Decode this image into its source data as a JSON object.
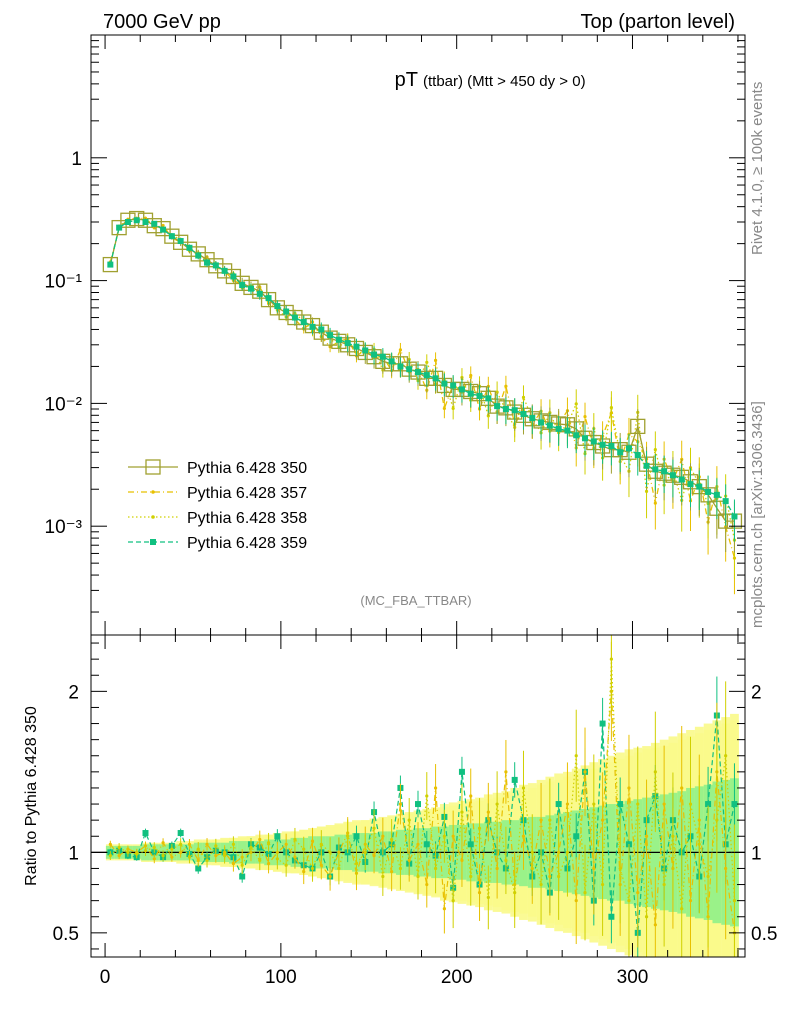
{
  "header": {
    "left": "7000 GeV pp",
    "right": "Top (parton level)"
  },
  "side_labels": {
    "rivet": "Rivet 4.1.0, ≥ 100k events",
    "mcplots": "mcplots.cern.ch [arXiv:1306.3436]"
  },
  "chart_data": [
    {
      "type": "line",
      "title": "pT",
      "subtitle": "(ttbar) (Mtt > 450 dy > 0)",
      "analysis_tag": "(MC_FBA_TTBAR)",
      "xlabel": "",
      "ylabel": "",
      "xlim": [
        -8,
        364
      ],
      "ylim": [
        0.00013,
        10
      ],
      "yscale": "log",
      "ytick_labels": [
        "1",
        "10⁻¹",
        "10⁻²",
        "10⁻³"
      ],
      "legend_position": "bottom-left",
      "series": [
        {
          "name": "Pythia 6.428 350",
          "color": "#a0a030",
          "marker": "open-square",
          "x": [
            3,
            8,
            13,
            18,
            23,
            28,
            33,
            38,
            43,
            48,
            53,
            58,
            63,
            68,
            73,
            78,
            83,
            88,
            93,
            98,
            103,
            108,
            113,
            118,
            123,
            128,
            133,
            138,
            143,
            148,
            153,
            158,
            163,
            168,
            173,
            178,
            183,
            188,
            193,
            198,
            203,
            208,
            213,
            218,
            223,
            228,
            233,
            238,
            243,
            248,
            253,
            258,
            263,
            268,
            273,
            278,
            283,
            288,
            293,
            298,
            303,
            308,
            313,
            318,
            323,
            328,
            333,
            338,
            343,
            348,
            353,
            358
          ],
          "y": [
            0.135,
            0.27,
            0.31,
            0.32,
            0.31,
            0.28,
            0.265,
            0.23,
            0.205,
            0.18,
            0.165,
            0.148,
            0.132,
            0.12,
            0.108,
            0.095,
            0.088,
            0.082,
            0.07,
            0.06,
            0.055,
            0.05,
            0.046,
            0.043,
            0.038,
            0.034,
            0.032,
            0.03,
            0.028,
            0.026,
            0.024,
            0.022,
            0.021,
            0.021,
            0.019,
            0.018,
            0.016,
            0.016,
            0.014,
            0.013,
            0.013,
            0.0125,
            0.012,
            0.011,
            0.0095,
            0.0092,
            0.0085,
            0.008,
            0.0075,
            0.0072,
            0.007,
            0.0068,
            0.0067,
            0.0062,
            0.0052,
            0.0048,
            0.0045,
            0.0042,
            0.0042,
            0.004,
            0.0065,
            0.0032,
            0.0028,
            0.0027,
            0.0026,
            0.0025,
            0.0023,
            0.0021,
            0.0018,
            0.0014,
            0.0011,
            0.0011
          ]
        },
        {
          "name": "Pythia 6.428 357",
          "color": "#e8c000",
          "marker": "dash-dot"
        },
        {
          "name": "Pythia 6.428 358",
          "color": "#d0d000",
          "marker": "dotted"
        },
        {
          "name": "Pythia 6.428 359",
          "color": "#10c080",
          "marker": "filled-square",
          "x": [
            3,
            8,
            13,
            18,
            23,
            28,
            33,
            38,
            43,
            48,
            53,
            58,
            63,
            68,
            73,
            78,
            83,
            88,
            93,
            98,
            103,
            108,
            113,
            118,
            123,
            128,
            133,
            138,
            143,
            148,
            153,
            158,
            163,
            168,
            173,
            178,
            183,
            188,
            193,
            198,
            203,
            208,
            213,
            218,
            223,
            228,
            233,
            238,
            243,
            248,
            253,
            258,
            263,
            268,
            273,
            278,
            283,
            288,
            293,
            298,
            303,
            308,
            313,
            318,
            323,
            328,
            333,
            338,
            343,
            348,
            353,
            358
          ],
          "y": [
            0.135,
            0.27,
            0.3,
            0.31,
            0.3,
            0.29,
            0.26,
            0.23,
            0.21,
            0.185,
            0.16,
            0.14,
            0.133,
            0.12,
            0.108,
            0.092,
            0.086,
            0.078,
            0.072,
            0.062,
            0.056,
            0.05,
            0.046,
            0.042,
            0.04,
            0.036,
            0.033,
            0.031,
            0.029,
            0.027,
            0.025,
            0.024,
            0.022,
            0.02,
            0.019,
            0.018,
            0.017,
            0.016,
            0.0145,
            0.014,
            0.013,
            0.012,
            0.0115,
            0.011,
            0.0095,
            0.009,
            0.0088,
            0.0082,
            0.0076,
            0.007,
            0.0066,
            0.0062,
            0.006,
            0.0055,
            0.0052,
            0.0049,
            0.0046,
            0.0045,
            0.004,
            0.0043,
            0.0038,
            0.0031,
            0.0029,
            0.0028,
            0.0026,
            0.0024,
            0.0022,
            0.0021,
            0.0019,
            0.0018,
            0.0016,
            0.0012
          ]
        }
      ]
    },
    {
      "type": "line",
      "title": "",
      "xlabel": "",
      "ylabel": "Ratio to Pythia 6.428 350",
      "xlim": [
        -8,
        364
      ],
      "ylim": [
        0.35,
        2.35
      ],
      "xticks": [
        0,
        100,
        200,
        300
      ],
      "yticks": [
        0.5,
        1,
        2
      ],
      "reference_value": 1,
      "series": [
        {
          "name": "Pythia 6.428 359",
          "color": "#10c080",
          "x": [
            3,
            8,
            13,
            18,
            23,
            28,
            33,
            38,
            43,
            48,
            53,
            58,
            63,
            68,
            73,
            78,
            83,
            88,
            93,
            98,
            103,
            108,
            113,
            118,
            123,
            128,
            133,
            138,
            143,
            148,
            153,
            158,
            163,
            168,
            173,
            178,
            183,
            188,
            193,
            198,
            203,
            208,
            213,
            218,
            223,
            228,
            233,
            238,
            243,
            248,
            253,
            258,
            263,
            268,
            273,
            278,
            283,
            288,
            293,
            298,
            303,
            308,
            313,
            318,
            323,
            328,
            333,
            338,
            343,
            348,
            353,
            358
          ],
          "y": [
            1.0,
            1.01,
            0.98,
            0.97,
            1.12,
            1.0,
            0.97,
            1.04,
            1.12,
            0.99,
            0.9,
            0.97,
            1.01,
            1.0,
            0.97,
            0.85,
            1.05,
            1.03,
            0.99,
            1.1,
            1.0,
            0.95,
            0.92,
            0.9,
            1.0,
            0.85,
            1.03,
            1.0,
            1.1,
            0.94,
            1.25,
            1.0,
            1.05,
            1.4,
            0.93,
            1.3,
            1.05,
            0.98,
            1.22,
            0.78,
            1.5,
            1.05,
            0.8,
            1.2,
            1.0,
            0.9,
            1.45,
            1.2,
            0.85,
            1.0,
            0.75,
            1.3,
            0.9,
            1.1,
            1.5,
            0.7,
            1.8,
            0.6,
            1.3,
            1.05,
            0.5,
            1.2,
            1.35,
            0.9,
            1.2,
            1.0,
            1.1,
            0.85,
            1.3,
            1.85,
            1.05,
            1.3
          ],
          "band": [
            0.04,
            0.04,
            0.04,
            0.04,
            0.05,
            0.05,
            0.05,
            0.05,
            0.05,
            0.05,
            0.06,
            0.06,
            0.06,
            0.06,
            0.07,
            0.07,
            0.07,
            0.07,
            0.08,
            0.08,
            0.08,
            0.09,
            0.09,
            0.1,
            0.1,
            0.1,
            0.11,
            0.11,
            0.12,
            0.12,
            0.12,
            0.13,
            0.13,
            0.14,
            0.14,
            0.15,
            0.15,
            0.16,
            0.16,
            0.17,
            0.17,
            0.18,
            0.18,
            0.19,
            0.19,
            0.2,
            0.2,
            0.21,
            0.22,
            0.22,
            0.23,
            0.24,
            0.25,
            0.26,
            0.27,
            0.28,
            0.29,
            0.3,
            0.3,
            0.32,
            0.33,
            0.34,
            0.35,
            0.36,
            0.37,
            0.38,
            0.4,
            0.41,
            0.42,
            0.44,
            0.45,
            0.46
          ]
        },
        {
          "name": "Pythia 6.428 357",
          "color": "#e8c000",
          "x": [
            3,
            8,
            13,
            18,
            23,
            28,
            33,
            38,
            43,
            48,
            53,
            58,
            63,
            68,
            73,
            78,
            83,
            88,
            93,
            98,
            103,
            108,
            113,
            118,
            123,
            128,
            133,
            138,
            143,
            148,
            153,
            158,
            163,
            168,
            173,
            178,
            183,
            188,
            193,
            198,
            203,
            208,
            213,
            218,
            223,
            228,
            233,
            238,
            243,
            248,
            253,
            258,
            263,
            268,
            273,
            278,
            283,
            288,
            293,
            298,
            303,
            308,
            313,
            318,
            323,
            328,
            333,
            338,
            343,
            348,
            353,
            358
          ],
          "y": [
            1.05,
            0.98,
            1.02,
            1.0,
            1.04,
            0.96,
            1.06,
            0.97,
            1.0,
            1.05,
            0.95,
            1.05,
            0.98,
            1.0,
            0.93,
            0.97,
            1.0,
            1.08,
            0.93,
            1.0,
            1.05,
            0.97,
            0.88,
            1.07,
            0.92,
            0.85,
            1.0,
            1.12,
            0.87,
            1.05,
            0.98,
            1.1,
            0.88,
            1.3,
            0.95,
            1.05,
            0.8,
            1.4,
            0.65,
            1.1,
            0.95,
            1.35,
            0.75,
            1.25,
            0.9,
            1.5,
            0.8,
            1.1,
            0.9,
            1.2,
            0.85,
            1.0,
            1.3,
            0.7,
            1.5,
            0.9,
            1.2,
            2.0,
            0.8,
            1.4,
            0.75,
            1.1,
            0.55,
            1.3,
            0.9,
            1.4,
            0.7,
            1.2,
            0.6,
            1.5,
            0.9,
            0.5
          ],
          "band": [
            0.04,
            0.04,
            0.04,
            0.04,
            0.05,
            0.05,
            0.05,
            0.05,
            0.06,
            0.06,
            0.07,
            0.07,
            0.08,
            0.08,
            0.09,
            0.09,
            0.1,
            0.1,
            0.11,
            0.12,
            0.12,
            0.13,
            0.14,
            0.15,
            0.16,
            0.16,
            0.17,
            0.18,
            0.19,
            0.2,
            0.2,
            0.21,
            0.22,
            0.23,
            0.24,
            0.25,
            0.26,
            0.27,
            0.28,
            0.29,
            0.3,
            0.31,
            0.32,
            0.33,
            0.34,
            0.36,
            0.37,
            0.38,
            0.4,
            0.42,
            0.44,
            0.45,
            0.47,
            0.49,
            0.5,
            0.52,
            0.54,
            0.56,
            0.58,
            0.6,
            0.62,
            0.64,
            0.65,
            0.66,
            0.68,
            0.7,
            0.72,
            0.74,
            0.76,
            0.78,
            0.8,
            0.82
          ]
        },
        {
          "name": "Pythia 6.428 358",
          "color": "#d0d000",
          "x": [
            3,
            8,
            13,
            18,
            23,
            28,
            33,
            38,
            43,
            48,
            53,
            58,
            63,
            68,
            73,
            78,
            83,
            88,
            93,
            98,
            103,
            108,
            113,
            118,
            123,
            128,
            133,
            138,
            143,
            148,
            153,
            158,
            163,
            168,
            173,
            178,
            183,
            188,
            193,
            198,
            203,
            208,
            213,
            218,
            223,
            228,
            233,
            238,
            243,
            248,
            253,
            258,
            263,
            268,
            273,
            278,
            283,
            288,
            293,
            298,
            303,
            308,
            313,
            318,
            323,
            328,
            333,
            338,
            343,
            348,
            353,
            358
          ],
          "y": [
            0.98,
            1.03,
            1.0,
            0.99,
            1.01,
            1.03,
            0.98,
            1.02,
            1.05,
            0.97,
            1.02,
            0.95,
            1.04,
            0.98,
            1.05,
            0.92,
            1.03,
            0.95,
            1.06,
            0.96,
            0.92,
            1.08,
            1.02,
            0.9,
            1.05,
            1.0,
            0.9,
            1.1,
            0.93,
            1.0,
            1.15,
            0.85,
            1.08,
            0.9,
            1.2,
            0.85,
            1.35,
            0.9,
            1.1,
            0.7,
            1.25,
            0.85,
            1.15,
            0.72,
            1.3,
            0.95,
            0.75,
            1.4,
            1.0,
            0.8,
            1.2,
            0.85,
            1.0,
            1.6,
            0.75,
            1.3,
            0.8,
            2.2,
            0.9,
            0.7,
            1.3,
            0.6,
            1.5,
            0.8,
            1.1,
            0.65,
            1.3,
            1.05,
            0.85,
            1.2,
            1.6,
            0.7
          ],
          "band": [
            0.05,
            0.05,
            0.05,
            0.05,
            0.06,
            0.06,
            0.06,
            0.06,
            0.07,
            0.07,
            0.08,
            0.08,
            0.08,
            0.09,
            0.09,
            0.1,
            0.1,
            0.11,
            0.11,
            0.12,
            0.13,
            0.13,
            0.14,
            0.15,
            0.16,
            0.17,
            0.18,
            0.19,
            0.2,
            0.2,
            0.21,
            0.22,
            0.23,
            0.24,
            0.25,
            0.26,
            0.27,
            0.28,
            0.3,
            0.31,
            0.32,
            0.33,
            0.34,
            0.36,
            0.37,
            0.38,
            0.4,
            0.42,
            0.43,
            0.45,
            0.47,
            0.49,
            0.5,
            0.52,
            0.54,
            0.56,
            0.58,
            0.6,
            0.62,
            0.64,
            0.65,
            0.66,
            0.68,
            0.7,
            0.72,
            0.74,
            0.76,
            0.78,
            0.8,
            0.82,
            0.84,
            0.86
          ]
        }
      ]
    }
  ]
}
